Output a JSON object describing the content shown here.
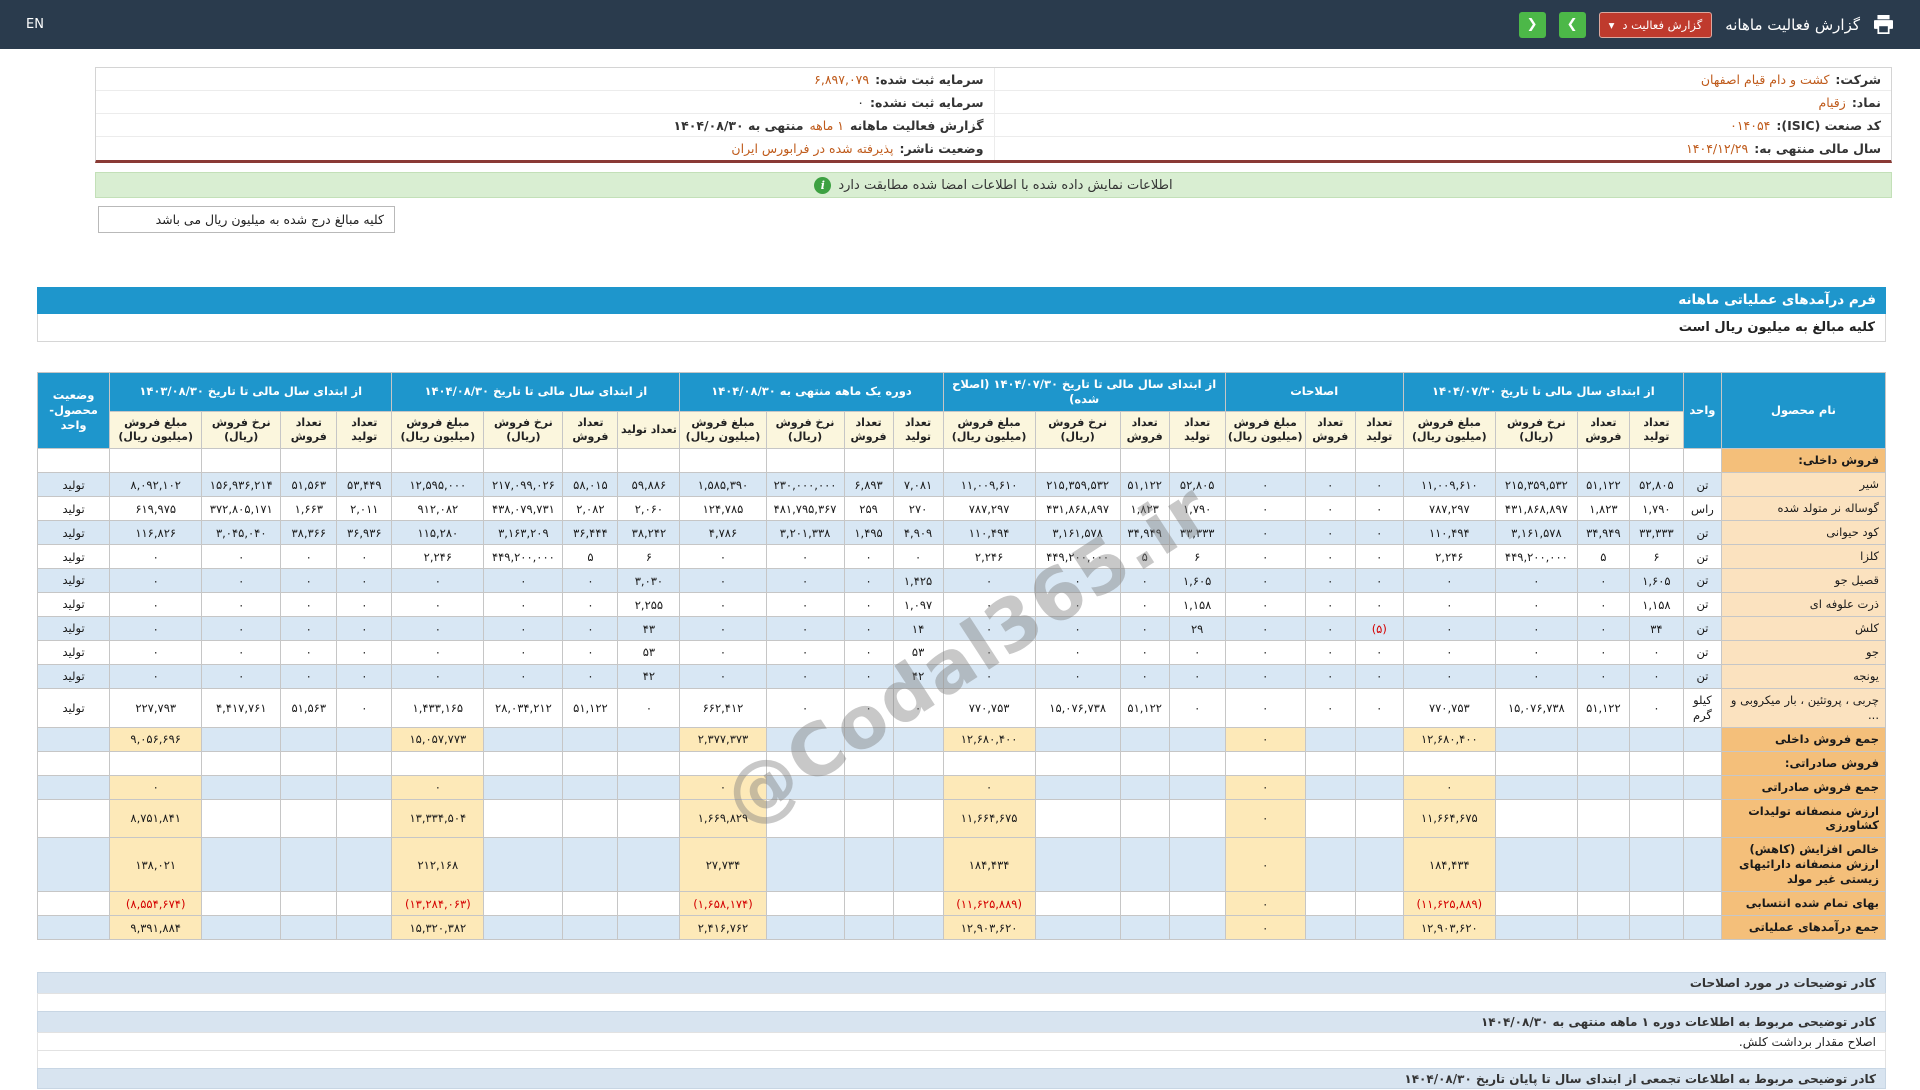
{
  "topbar": {
    "title": "گزارش فعالیت ماهانه",
    "report_select_label": "گزارش فعالیت د",
    "caret_glyph": "▾",
    "next_glyph": "❯",
    "prev_glyph": "❮",
    "en_label": "EN",
    "icons": {
      "printer": "printer-icon",
      "caret": "chevron-down-icon",
      "next": "chevron-right-icon",
      "prev": "chevron-left-icon"
    }
  },
  "company_info": {
    "right": [
      {
        "label": "شرکت:",
        "value": "کشت و دام قیام اصفهان",
        "link": true
      },
      {
        "label": "نماد:",
        "value": "زقیام",
        "link": true
      },
      {
        "label": "کد صنعت (ISIC):",
        "value": "۰۱۴۰۵۴",
        "link": true
      },
      {
        "label": "سال مالی منتهی به:",
        "value": "۱۴۰۴/۱۲/۲۹",
        "link": true
      }
    ],
    "left": [
      {
        "label": "سرمایه ثبت شده:",
        "value": "۶,۸۹۷,۰۷۹",
        "link": true
      },
      {
        "label": "سرمایه ثبت نشده:",
        "value": "۰",
        "link": false
      },
      {
        "label": "گزارش فعالیت ماهانه",
        "value": "۱ ماهه",
        "suffix": "منتهی به ۱۴۰۴/۰۸/۳۰",
        "link": true
      },
      {
        "label": "وضعیت ناشر:",
        "value": "پذیرفته شده در فرابورس ایران",
        "link": true
      }
    ]
  },
  "banner": {
    "text": "اطلاعات نمایش داده شده با اطلاعات امضا شده مطابقت دارد",
    "icon_glyph": "i",
    "icon": "info-circle-icon"
  },
  "unit_note": {
    "text": "کلیه مبالغ درج شده به میلیون ریال می باشد"
  },
  "form": {
    "title": "فرم درآمدهای عملیاتی ماهانه",
    "subtitle": "کلیه مبالغ به میلیون ریال است"
  },
  "watermark": {
    "text": "@Codal365.ir"
  },
  "colors": {
    "accent_blue": "#1e96cc",
    "topbar_navy": "#2a3b4d",
    "link_orange": "#bf5a1a",
    "negative_red": "#d40000",
    "stripe_blue": "#d8e7f4",
    "highlight_yellow": "#fde9b8",
    "name_tan": "#fbe2bf",
    "name_orange": "#f4bf7a",
    "green_button": "#4cb848",
    "red_button": "#bf3a2d",
    "banner_green": "#d9eed2",
    "maroon_line": "#8a3a35"
  },
  "table": {
    "product_col": "نام محصول",
    "unit_col": "واحد",
    "status_col": "وضعیت محصول-واحد",
    "subcols4": [
      "تعداد تولید",
      "تعداد فروش",
      "نرخ فروش (ریال)",
      "مبلغ فروش (میلیون ریال)"
    ],
    "subcols3": [
      "تعداد تولید",
      "تعداد فروش",
      "مبلغ فروش (میلیون ریال)"
    ],
    "groups": [
      {
        "title": "از ابتدای سال مالی تا تاریخ ۱۴۰۴/۰۷/۳۰",
        "cols": 4
      },
      {
        "title": "اصلاحات",
        "cols": 3
      },
      {
        "title": "از ابتدای سال مالی تا تاریخ ۱۴۰۴/۰۷/۳۰ (اصلاح شده)",
        "cols": 4
      },
      {
        "title": "دوره یک ماهه منتهی به ۱۴۰۴/۰۸/۳۰",
        "cols": 4
      },
      {
        "title": "از ابتدای سال مالی تا تاریخ ۱۴۰۴/۰۸/۳۰",
        "cols": 4
      },
      {
        "title": "از ابتدای سال مالی تا تاریخ ۱۴۰۳/۰۸/۳۰",
        "cols": 4
      }
    ],
    "rows": [
      {
        "type": "section",
        "name": "فروش داخلی:"
      },
      {
        "type": "product",
        "name": "شیر",
        "unit": "تن",
        "status": "تولید",
        "g1": [
          "۵۲,۸۰۵",
          "۵۱,۱۲۲",
          "۲۱۵,۳۵۹,۵۳۲",
          "۱۱,۰۰۹,۶۱۰"
        ],
        "g2": [
          "۰",
          "۰",
          "۰"
        ],
        "g3": [
          "۵۲,۸۰۵",
          "۵۱,۱۲۲",
          "۲۱۵,۳۵۹,۵۳۲",
          "۱۱,۰۰۹,۶۱۰"
        ],
        "g4": [
          "۷,۰۸۱",
          "۶,۸۹۳",
          "۲۳۰,۰۰۰,۰۰۰",
          "۱,۵۸۵,۳۹۰"
        ],
        "g5": [
          "۵۹,۸۸۶",
          "۵۸,۰۱۵",
          "۲۱۷,۰۹۹,۰۲۶",
          "۱۲,۵۹۵,۰۰۰"
        ],
        "g6": [
          "۵۳,۴۴۹",
          "۵۱,۵۶۳",
          "۱۵۶,۹۳۶,۲۱۴",
          "۸,۰۹۲,۱۰۲"
        ]
      },
      {
        "type": "product",
        "name": "گوساله نر متولد شده",
        "unit": "راس",
        "status": "تولید",
        "g1": [
          "۱,۷۹۰",
          "۱,۸۲۳",
          "۴۳۱,۸۶۸,۸۹۷",
          "۷۸۷,۲۹۷"
        ],
        "g2": [
          "۰",
          "۰",
          "۰"
        ],
        "g3": [
          "۱,۷۹۰",
          "۱,۸۲۳",
          "۴۳۱,۸۶۸,۸۹۷",
          "۷۸۷,۲۹۷"
        ],
        "g4": [
          "۲۷۰",
          "۲۵۹",
          "۴۸۱,۷۹۵,۳۶۷",
          "۱۲۴,۷۸۵"
        ],
        "g5": [
          "۲,۰۶۰",
          "۲,۰۸۲",
          "۴۳۸,۰۷۹,۷۳۱",
          "۹۱۲,۰۸۲"
        ],
        "g6": [
          "۲,۰۱۱",
          "۱,۶۶۳",
          "۳۷۲,۸۰۵,۱۷۱",
          "۶۱۹,۹۷۵"
        ]
      },
      {
        "type": "product",
        "name": "کود حیوانی",
        "unit": "تن",
        "status": "تولید",
        "g1": [
          "۳۳,۳۳۳",
          "۳۴,۹۴۹",
          "۳,۱۶۱,۵۷۸",
          "۱۱۰,۴۹۴"
        ],
        "g2": [
          "۰",
          "۰",
          "۰"
        ],
        "g3": [
          "۳۳,۳۳۳",
          "۳۴,۹۴۹",
          "۳,۱۶۱,۵۷۸",
          "۱۱۰,۴۹۴"
        ],
        "g4": [
          "۴,۹۰۹",
          "۱,۴۹۵",
          "۳,۲۰۱,۳۳۸",
          "۴,۷۸۶"
        ],
        "g5": [
          "۳۸,۲۴۲",
          "۳۶,۴۴۴",
          "۳,۱۶۳,۲۰۹",
          "۱۱۵,۲۸۰"
        ],
        "g6": [
          "۳۶,۹۳۶",
          "۳۸,۳۶۶",
          "۳,۰۴۵,۰۴۰",
          "۱۱۶,۸۲۶"
        ]
      },
      {
        "type": "product",
        "name": "کلزا",
        "unit": "تن",
        "status": "تولید",
        "g1": [
          "۶",
          "۵",
          "۴۴۹,۲۰۰,۰۰۰",
          "۲,۲۴۶"
        ],
        "g2": [
          "۰",
          "۰",
          "۰"
        ],
        "g3": [
          "۶",
          "۵",
          "۴۴۹,۲۰۰,۰۰۰",
          "۲,۲۴۶"
        ],
        "g4": [
          "۰",
          "۰",
          "۰",
          "۰"
        ],
        "g5": [
          "۶",
          "۵",
          "۴۴۹,۲۰۰,۰۰۰",
          "۲,۲۴۶"
        ],
        "g6": [
          "۰",
          "۰",
          "۰",
          "۰"
        ]
      },
      {
        "type": "product",
        "name": "قصیل جو",
        "unit": "تن",
        "status": "تولید",
        "g1": [
          "۱,۶۰۵",
          "۰",
          "۰",
          "۰"
        ],
        "g2": [
          "۰",
          "۰",
          "۰"
        ],
        "g3": [
          "۱,۶۰۵",
          "۰",
          "۰",
          "۰"
        ],
        "g4": [
          "۱,۴۲۵",
          "۰",
          "۰",
          "۰"
        ],
        "g5": [
          "۳,۰۳۰",
          "۰",
          "۰",
          "۰"
        ],
        "g6": [
          "۰",
          "۰",
          "۰",
          "۰"
        ]
      },
      {
        "type": "product",
        "name": "ذرت علوفه ای",
        "unit": "تن",
        "status": "تولید",
        "g1": [
          "۱,۱۵۸",
          "۰",
          "۰",
          "۰"
        ],
        "g2": [
          "۰",
          "۰",
          "۰"
        ],
        "g3": [
          "۱,۱۵۸",
          "۰",
          "۰",
          "۰"
        ],
        "g4": [
          "۱,۰۹۷",
          "۰",
          "۰",
          "۰"
        ],
        "g5": [
          "۲,۲۵۵",
          "۰",
          "۰",
          "۰"
        ],
        "g6": [
          "۰",
          "۰",
          "۰",
          "۰"
        ]
      },
      {
        "type": "product",
        "name": "کلش",
        "unit": "تن",
        "status": "تولید",
        "g1": [
          "۳۴",
          "۰",
          "۰",
          "۰"
        ],
        "g2": [
          "(۵)",
          "۰",
          "۰"
        ],
        "g3": [
          "۲۹",
          "۰",
          "۰",
          "۰"
        ],
        "g4": [
          "۱۴",
          "۰",
          "۰",
          "۰"
        ],
        "g5": [
          "۴۳",
          "۰",
          "۰",
          "۰"
        ],
        "g6": [
          "۰",
          "۰",
          "۰",
          "۰"
        ]
      },
      {
        "type": "product",
        "name": "جو",
        "unit": "تن",
        "status": "تولید",
        "g1": [
          "۰",
          "۰",
          "۰",
          "۰"
        ],
        "g2": [
          "۰",
          "۰",
          "۰"
        ],
        "g3": [
          "۰",
          "۰",
          "۰",
          "۰"
        ],
        "g4": [
          "۵۳",
          "۰",
          "۰",
          "۰"
        ],
        "g5": [
          "۵۳",
          "۰",
          "۰",
          "۰"
        ],
        "g6": [
          "۰",
          "۰",
          "۰",
          "۰"
        ]
      },
      {
        "type": "product",
        "name": "یونجه",
        "unit": "تن",
        "status": "تولید",
        "g1": [
          "۰",
          "۰",
          "۰",
          "۰"
        ],
        "g2": [
          "۰",
          "۰",
          "۰"
        ],
        "g3": [
          "۰",
          "۰",
          "۰",
          "۰"
        ],
        "g4": [
          "۴۲",
          "۰",
          "۰",
          "۰"
        ],
        "g5": [
          "۴۲",
          "۰",
          "۰",
          "۰"
        ],
        "g6": [
          "۰",
          "۰",
          "۰",
          "۰"
        ]
      },
      {
        "type": "product",
        "name": "چربی ، پروتئین ، بار میکروبی و ...",
        "unit": "کیلو گرم",
        "status": "تولید",
        "g1": [
          "۰",
          "۵۱,۱۲۲",
          "۱۵,۰۷۶,۷۳۸",
          "۷۷۰,۷۵۳"
        ],
        "g2": [
          "۰",
          "۰",
          "۰"
        ],
        "g3": [
          "۰",
          "۵۱,۱۲۲",
          "۱۵,۰۷۶,۷۳۸",
          "۷۷۰,۷۵۳"
        ],
        "g4": [
          "۰",
          "۰",
          "۰",
          "۶۶۲,۴۱۲"
        ],
        "g5": [
          "۰",
          "۵۱,۱۲۲",
          "۲۸,۰۳۴,۲۱۲",
          "۱,۴۳۳,۱۶۵"
        ],
        "g6": [
          "۰",
          "۵۱,۵۶۳",
          "۴,۴۱۷,۷۶۱",
          "۲۲۷,۷۹۳"
        ]
      },
      {
        "type": "total",
        "name": "جمع فروش داخلی",
        "amounts": [
          "۱۲,۶۸۰,۴۰۰",
          "۰",
          "۱۲,۶۸۰,۴۰۰",
          "۲,۳۷۷,۳۷۳",
          "۱۵,۰۵۷,۷۷۳",
          "۹,۰۵۶,۶۹۶"
        ]
      },
      {
        "type": "section",
        "name": "فروش صادراتی:"
      },
      {
        "type": "total",
        "name": "جمع فروش صادراتی",
        "amounts": [
          "۰",
          "۰",
          "۰",
          "۰",
          "۰",
          "۰"
        ]
      },
      {
        "type": "total",
        "name": "ارزش منصفانه تولیدات کشاورزی",
        "amounts": [
          "۱۱,۶۶۴,۶۷۵",
          "۰",
          "۱۱,۶۶۴,۶۷۵",
          "۱,۶۶۹,۸۲۹",
          "۱۳,۳۳۴,۵۰۴",
          "۸,۷۵۱,۸۴۱"
        ]
      },
      {
        "type": "total",
        "name": "خالص افزایش (کاهش) ارزش منصفانه دارائیهای زیستی غیر مولد",
        "amounts": [
          "۱۸۴,۴۳۴",
          "۰",
          "۱۸۴,۴۳۴",
          "۲۷,۷۳۴",
          "۲۱۲,۱۶۸",
          "۱۳۸,۰۲۱"
        ]
      },
      {
        "type": "total",
        "name": "بهای تمام شده انتسابی",
        "amounts": [
          "(۱۱,۶۲۵,۸۸۹)",
          "۰",
          "(۱۱,۶۲۵,۸۸۹)",
          "(۱,۶۵۸,۱۷۴)",
          "(۱۳,۲۸۴,۰۶۳)",
          "(۸,۵۵۴,۶۷۴)"
        ]
      },
      {
        "type": "total",
        "name": "جمع درآمدهای عملیاتی",
        "amounts": [
          "۱۲,۹۰۳,۶۲۰",
          "۰",
          "۱۲,۹۰۳,۶۲۰",
          "۲,۴۱۶,۷۶۲",
          "۱۵,۳۲۰,۳۸۲",
          "۹,۳۹۱,۸۸۴"
        ]
      }
    ]
  },
  "notes": {
    "rows": [
      {
        "type": "header",
        "text": "کادر توضیحات در مورد اصلاحات"
      },
      {
        "type": "body",
        "text": ""
      },
      {
        "type": "header",
        "text": "کادر توضیحی مربوط به اطلاعات دوره ۱ ماهه منتهی به ۱۴۰۴/۰۸/۳۰"
      },
      {
        "type": "body",
        "text": "اصلاح مقدار برداشت کلش."
      },
      {
        "type": "body",
        "text": ""
      },
      {
        "type": "header",
        "text": "کادر توضیحی مربوط به اطلاعات تجمعی از ابتدای سال تا پایان تاریخ ۱۴۰۴/۰۸/۳۰"
      }
    ]
  }
}
